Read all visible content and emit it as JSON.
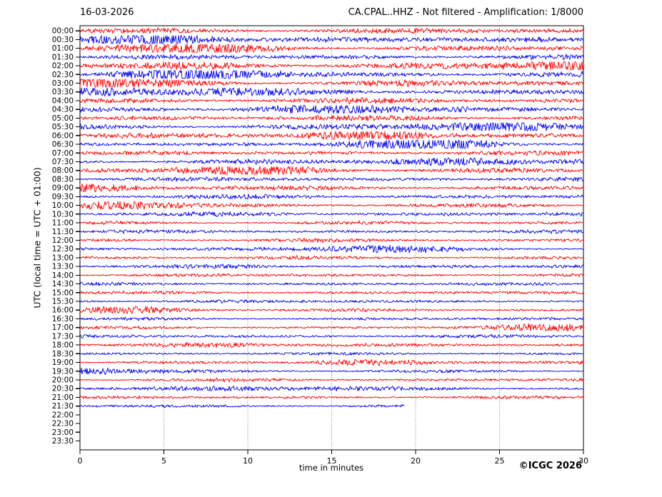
{
  "header": {
    "date": "16-03-2026",
    "title": "CA.CPAL..HHZ - Not filtered - Amplification: 1/8000"
  },
  "footer": {
    "copyright": "©ICGC 2026"
  },
  "chart_data": {
    "type": "line",
    "subtype": "helicorder-drum-plot",
    "station_channel": "CA.CPAL..HHZ",
    "filter": "Not filtered",
    "amplification": "1/8000",
    "date": "16-03-2026",
    "xlabel": "time in minutes",
    "ylabel": "UTC (local time = UTC + 01:00)",
    "xlim": [
      0,
      30
    ],
    "xticks": [
      0,
      5,
      10,
      15,
      20,
      25,
      30
    ],
    "grid_minutes": [
      5,
      10,
      15,
      20,
      25
    ],
    "grid_style": "vertical dotted gray lines at 5-minute intervals",
    "legend": "none",
    "colors": {
      "red": "#ff0000",
      "blue": "#0000ee",
      "frame": "#000000",
      "grid": "#777777",
      "background": "#ffffff"
    },
    "rows_note": "48 half-hour traces alternating red/blue; amplitude is relative noise level; end_minute<30 means trace stops early; end_minute=0 means no data",
    "rows": [
      {
        "label": "00:00",
        "color": "red",
        "end_minute": 30,
        "amplitude": 0.5
      },
      {
        "label": "00:30",
        "color": "blue",
        "end_minute": 30,
        "amplitude": 0.5
      },
      {
        "label": "01:00",
        "color": "red",
        "end_minute": 30,
        "amplitude": 0.5
      },
      {
        "label": "01:30",
        "color": "blue",
        "end_minute": 30,
        "amplitude": 0.45
      },
      {
        "label": "02:00",
        "color": "red",
        "end_minute": 30,
        "amplitude": 0.65
      },
      {
        "label": "02:30",
        "color": "blue",
        "end_minute": 30,
        "amplitude": 0.5
      },
      {
        "label": "03:00",
        "color": "red",
        "end_minute": 30,
        "amplitude": 0.55
      },
      {
        "label": "03:30",
        "color": "blue",
        "end_minute": 30,
        "amplitude": 0.55
      },
      {
        "label": "04:00",
        "color": "red",
        "end_minute": 30,
        "amplitude": 0.5
      },
      {
        "label": "04:30",
        "color": "blue",
        "end_minute": 30,
        "amplitude": 0.45
      },
      {
        "label": "05:00",
        "color": "red",
        "end_minute": 30,
        "amplitude": 0.5
      },
      {
        "label": "05:30",
        "color": "blue",
        "end_minute": 30,
        "amplitude": 0.5
      },
      {
        "label": "06:00",
        "color": "red",
        "end_minute": 30,
        "amplitude": 0.45
      },
      {
        "label": "06:30",
        "color": "blue",
        "end_minute": 30,
        "amplitude": 0.45
      },
      {
        "label": "07:00",
        "color": "red",
        "end_minute": 30,
        "amplitude": 0.4
      },
      {
        "label": "07:30",
        "color": "blue",
        "end_minute": 30,
        "amplitude": 0.45
      },
      {
        "label": "08:00",
        "color": "red",
        "end_minute": 30,
        "amplitude": 0.4
      },
      {
        "label": "08:30",
        "color": "blue",
        "end_minute": 30,
        "amplitude": 0.4
      },
      {
        "label": "09:00",
        "color": "red",
        "end_minute": 30,
        "amplitude": 0.4
      },
      {
        "label": "09:30",
        "color": "blue",
        "end_minute": 30,
        "amplitude": 0.4
      },
      {
        "label": "10:00",
        "color": "red",
        "end_minute": 30,
        "amplitude": 0.35
      },
      {
        "label": "10:30",
        "color": "blue",
        "end_minute": 30,
        "amplitude": 0.4
      },
      {
        "label": "11:00",
        "color": "red",
        "end_minute": 30,
        "amplitude": 0.32
      },
      {
        "label": "11:30",
        "color": "blue",
        "end_minute": 30,
        "amplitude": 0.32
      },
      {
        "label": "12:00",
        "color": "red",
        "end_minute": 30,
        "amplitude": 0.32
      },
      {
        "label": "12:30",
        "color": "blue",
        "end_minute": 30,
        "amplitude": 0.32
      },
      {
        "label": "13:00",
        "color": "red",
        "end_minute": 30,
        "amplitude": 0.32
      },
      {
        "label": "13:30",
        "color": "blue",
        "end_minute": 30,
        "amplitude": 0.35
      },
      {
        "label": "14:00",
        "color": "red",
        "end_minute": 30,
        "amplitude": 0.32
      },
      {
        "label": "14:30",
        "color": "blue",
        "end_minute": 30,
        "amplitude": 0.3
      },
      {
        "label": "15:00",
        "color": "red",
        "end_minute": 30,
        "amplitude": 0.3
      },
      {
        "label": "15:30",
        "color": "blue",
        "end_minute": 30,
        "amplitude": 0.3
      },
      {
        "label": "16:00",
        "color": "red",
        "end_minute": 30,
        "amplitude": 0.28
      },
      {
        "label": "16:30",
        "color": "blue",
        "end_minute": 30,
        "amplitude": 0.28
      },
      {
        "label": "17:00",
        "color": "red",
        "end_minute": 30,
        "amplitude": 0.26
      },
      {
        "label": "17:30",
        "color": "blue",
        "end_minute": 30,
        "amplitude": 0.3
      },
      {
        "label": "18:00",
        "color": "red",
        "end_minute": 30,
        "amplitude": 0.26
      },
      {
        "label": "18:30",
        "color": "blue",
        "end_minute": 30,
        "amplitude": 0.26
      },
      {
        "label": "19:00",
        "color": "red",
        "end_minute": 30,
        "amplitude": 0.26
      },
      {
        "label": "19:30",
        "color": "blue",
        "end_minute": 30,
        "amplitude": 0.26
      },
      {
        "label": "20:00",
        "color": "red",
        "end_minute": 30,
        "amplitude": 0.3
      },
      {
        "label": "20:30",
        "color": "blue",
        "end_minute": 30,
        "amplitude": 0.3
      },
      {
        "label": "21:00",
        "color": "red",
        "end_minute": 30,
        "amplitude": 0.28
      },
      {
        "label": "21:30",
        "color": "blue",
        "end_minute": 19.3,
        "amplitude": 0.28
      },
      {
        "label": "22:00",
        "color": "red",
        "end_minute": 0,
        "amplitude": 0
      },
      {
        "label": "22:30",
        "color": "blue",
        "end_minute": 0,
        "amplitude": 0
      },
      {
        "label": "23:00",
        "color": "red",
        "end_minute": 0,
        "amplitude": 0
      },
      {
        "label": "23:30",
        "color": "blue",
        "end_minute": 0,
        "amplitude": 0
      }
    ]
  }
}
